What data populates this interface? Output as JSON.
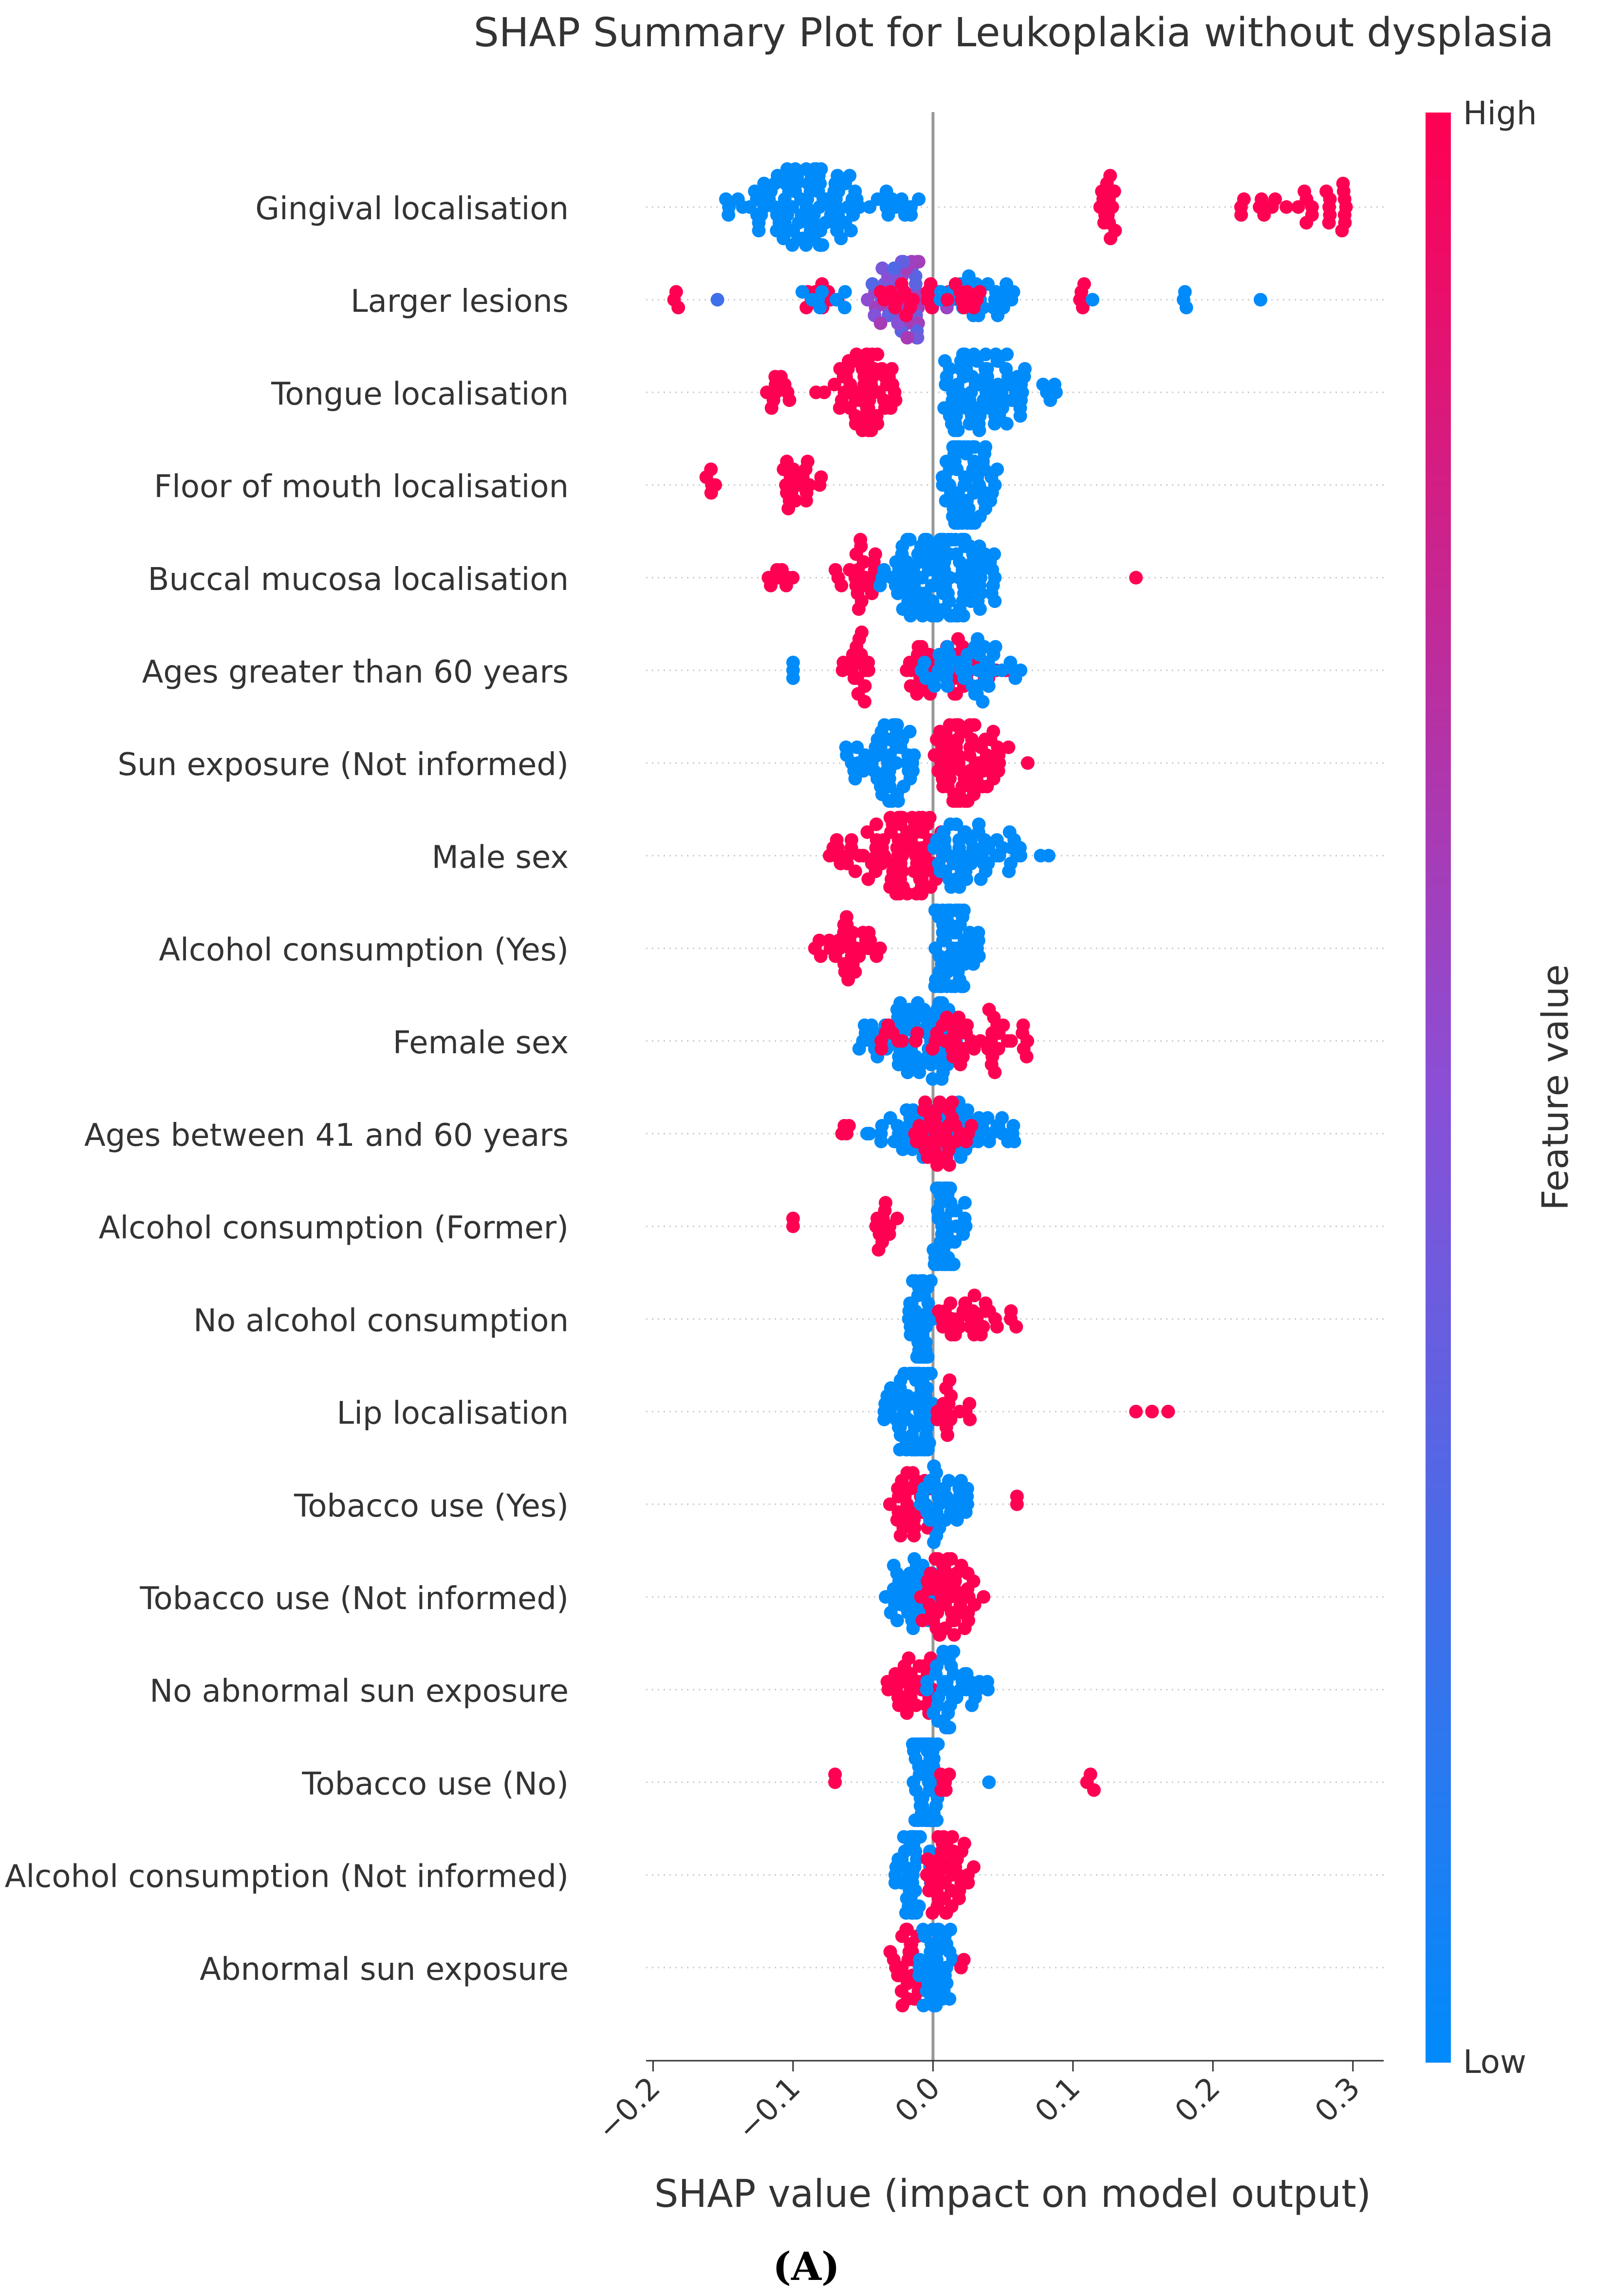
{
  "chart_data": {
    "type": "scatter",
    "subtype": "shap-beeswarm",
    "title": "SHAP Summary Plot for Leukoplakia without dysplasia",
    "xlabel": "SHAP value (impact on model output)",
    "ylabel": "",
    "xlim": [
      -0.205,
      0.322
    ],
    "x_ticks": [
      -0.2,
      -0.1,
      0.0,
      0.1,
      0.2,
      0.3
    ],
    "x_tick_labels": [
      "−0.2",
      "−0.1",
      "0.0",
      "0.1",
      "0.2",
      "0.3"
    ],
    "colorbar": {
      "label": "Feature value",
      "high_label": "High",
      "low_label": "Low",
      "low_color": "#008bfb",
      "mid_color": "#8a4fd6",
      "high_color": "#ff0052"
    },
    "panel_label": "(A)",
    "features": [
      {
        "name": "Gingival localisation",
        "clusters": [
          {
            "min": -0.153,
            "max": -0.052,
            "center": -0.09,
            "n": 95,
            "color": "low"
          },
          {
            "min": -0.05,
            "max": -0.01,
            "center": -0.03,
            "n": 14,
            "color": "low"
          },
          {
            "min": 0.119,
            "max": 0.135,
            "center": 0.127,
            "n": 14,
            "color": "high"
          },
          {
            "min": 0.218,
            "max": 0.3,
            "center": 0.275,
            "n": 28,
            "color": "high"
          }
        ]
      },
      {
        "name": "Larger lesions",
        "clusters": [
          {
            "min": -0.185,
            "max": -0.182,
            "center": -0.183,
            "n": 3,
            "color": "high"
          },
          {
            "min": -0.154,
            "max": -0.154,
            "center": -0.154,
            "n": 1,
            "color": 0.3
          },
          {
            "min": -0.1,
            "max": -0.065,
            "center": -0.08,
            "n": 10,
            "color": "high"
          },
          {
            "min": -0.1,
            "max": -0.05,
            "center": -0.075,
            "n": 8,
            "color": "low"
          },
          {
            "min": -0.05,
            "max": 0.02,
            "center": -0.015,
            "n": 55,
            "color": 0.45
          },
          {
            "min": -0.045,
            "max": 0.03,
            "center": -0.01,
            "n": 22,
            "color": "high"
          },
          {
            "min": 0.005,
            "max": 0.065,
            "center": 0.035,
            "n": 30,
            "color": "low"
          },
          {
            "min": 0.01,
            "max": 0.045,
            "center": 0.025,
            "n": 10,
            "color": "high"
          },
          {
            "min": 0.105,
            "max": 0.108,
            "center": 0.106,
            "n": 4,
            "color": "high"
          },
          {
            "min": 0.114,
            "max": 0.114,
            "center": 0.114,
            "n": 1,
            "color": "low"
          },
          {
            "min": 0.179,
            "max": 0.181,
            "center": 0.18,
            "n": 3,
            "color": "low"
          },
          {
            "min": 0.234,
            "max": 0.234,
            "center": 0.234,
            "n": 1,
            "color": "low"
          }
        ]
      },
      {
        "name": "Tongue localisation",
        "clusters": [
          {
            "min": -0.12,
            "max": -0.1,
            "center": -0.11,
            "n": 10,
            "color": "high"
          },
          {
            "min": -0.085,
            "max": -0.025,
            "center": -0.045,
            "n": 55,
            "color": "high"
          },
          {
            "min": 0.008,
            "max": 0.095,
            "center": 0.03,
            "n": 80,
            "color": "low"
          }
        ]
      },
      {
        "name": "Floor of mouth localisation",
        "clusters": [
          {
            "min": -0.165,
            "max": -0.155,
            "center": -0.16,
            "n": 5,
            "color": "high"
          },
          {
            "min": -0.11,
            "max": -0.065,
            "center": -0.095,
            "n": 20,
            "color": "high"
          },
          {
            "min": 0.005,
            "max": 0.048,
            "center": 0.02,
            "n": 60,
            "color": "low"
          }
        ]
      },
      {
        "name": "Buccal mucosa localisation",
        "clusters": [
          {
            "min": -0.125,
            "max": -0.1,
            "center": -0.11,
            "n": 8,
            "color": "high"
          },
          {
            "min": -0.07,
            "max": -0.04,
            "center": -0.045,
            "n": 22,
            "color": "high"
          },
          {
            "min": -0.04,
            "max": 0.045,
            "center": 0.005,
            "n": 110,
            "color": "low"
          },
          {
            "min": 0.145,
            "max": 0.145,
            "center": 0.145,
            "n": 1,
            "color": "high"
          }
        ]
      },
      {
        "name": "Ages greater than 60 years",
        "clusters": [
          {
            "min": -0.1,
            "max": -0.1,
            "center": -0.1,
            "n": 3,
            "color": "low"
          },
          {
            "min": -0.07,
            "max": -0.045,
            "center": -0.055,
            "n": 18,
            "color": "high"
          },
          {
            "min": -0.02,
            "max": 0.06,
            "center": 0.005,
            "n": 45,
            "color": "high"
          },
          {
            "min": -0.01,
            "max": 0.07,
            "center": 0.03,
            "n": 45,
            "color": "low"
          }
        ]
      },
      {
        "name": "Sun exposure (Not informed)",
        "clusters": [
          {
            "min": -0.065,
            "max": -0.01,
            "center": -0.03,
            "n": 55,
            "color": "low"
          },
          {
            "min": 0.0,
            "max": 0.07,
            "center": 0.015,
            "n": 70,
            "color": "high"
          }
        ]
      },
      {
        "name": "Male sex",
        "clusters": [
          {
            "min": -0.085,
            "max": -0.045,
            "center": -0.065,
            "n": 12,
            "color": "high"
          },
          {
            "min": -0.05,
            "max": 0.01,
            "center": -0.015,
            "n": 70,
            "color": "high"
          },
          {
            "min": 0.0,
            "max": 0.087,
            "center": 0.02,
            "n": 55,
            "color": "low"
          }
        ]
      },
      {
        "name": "Alcohol consumption (Yes)",
        "clusters": [
          {
            "min": -0.085,
            "max": -0.03,
            "center": -0.06,
            "n": 30,
            "color": "high"
          },
          {
            "min": 0.0,
            "max": 0.035,
            "center": 0.015,
            "n": 55,
            "color": "low"
          }
        ]
      },
      {
        "name": "Female sex",
        "clusters": [
          {
            "min": -0.055,
            "max": 0.02,
            "center": -0.01,
            "n": 75,
            "color": "low"
          },
          {
            "min": -0.04,
            "max": 0.07,
            "center": 0.03,
            "n": 50,
            "color": "high"
          }
        ]
      },
      {
        "name": "Ages between 41 and 60 years",
        "clusters": [
          {
            "min": -0.065,
            "max": -0.06,
            "center": -0.062,
            "n": 4,
            "color": "high"
          },
          {
            "min": -0.05,
            "max": 0.06,
            "center": 0.01,
            "n": 70,
            "color": "low"
          },
          {
            "min": -0.015,
            "max": 0.04,
            "center": 0.005,
            "n": 35,
            "color": "high"
          }
        ]
      },
      {
        "name": "Alcohol consumption (Former)",
        "clusters": [
          {
            "min": -0.1,
            "max": -0.1,
            "center": -0.1,
            "n": 2,
            "color": "high"
          },
          {
            "min": -0.045,
            "max": -0.025,
            "center": -0.035,
            "n": 12,
            "color": "high"
          },
          {
            "min": 0.0,
            "max": 0.025,
            "center": 0.008,
            "n": 45,
            "color": "low"
          }
        ]
      },
      {
        "name": "No alcohol consumption",
        "clusters": [
          {
            "min": -0.02,
            "max": 0.0,
            "center": -0.01,
            "n": 35,
            "color": "low"
          },
          {
            "min": 0.0,
            "max": 0.07,
            "center": 0.02,
            "n": 30,
            "color": "high"
          }
        ]
      },
      {
        "name": "Lip localisation",
        "clusters": [
          {
            "min": -0.035,
            "max": 0.0,
            "center": -0.008,
            "n": 70,
            "color": "low"
          },
          {
            "min": 0.0,
            "max": 0.035,
            "center": 0.015,
            "n": 15,
            "color": "high"
          },
          {
            "min": 0.145,
            "max": 0.168,
            "center": 0.155,
            "n": 3,
            "color": "high"
          }
        ]
      },
      {
        "name": "Tobacco use (Yes)",
        "clusters": [
          {
            "min": -0.035,
            "max": 0.0,
            "center": -0.015,
            "n": 30,
            "color": "high"
          },
          {
            "min": -0.01,
            "max": 0.035,
            "center": 0.005,
            "n": 35,
            "color": "low"
          },
          {
            "min": 0.06,
            "max": 0.06,
            "center": 0.06,
            "n": 2,
            "color": "high"
          }
        ]
      },
      {
        "name": "Tobacco use (Not informed)",
        "clusters": [
          {
            "min": -0.035,
            "max": 0.0,
            "center": -0.01,
            "n": 35,
            "color": "low"
          },
          {
            "min": -0.01,
            "max": 0.04,
            "center": 0.01,
            "n": 50,
            "color": "high"
          }
        ]
      },
      {
        "name": "No abnormal sun exposure",
        "clusters": [
          {
            "min": -0.035,
            "max": 0.0,
            "center": -0.015,
            "n": 30,
            "color": "high"
          },
          {
            "min": -0.005,
            "max": 0.04,
            "center": 0.005,
            "n": 40,
            "color": "low"
          }
        ]
      },
      {
        "name": "Tobacco use (No)",
        "clusters": [
          {
            "min": -0.07,
            "max": -0.07,
            "center": -0.07,
            "n": 2,
            "color": "high"
          },
          {
            "min": -0.015,
            "max": 0.005,
            "center": -0.004,
            "n": 60,
            "color": "low"
          },
          {
            "min": 0.005,
            "max": 0.02,
            "center": 0.012,
            "n": 6,
            "color": "high"
          },
          {
            "min": 0.04,
            "max": 0.04,
            "center": 0.04,
            "n": 1,
            "color": "low"
          },
          {
            "min": 0.11,
            "max": 0.115,
            "center": 0.112,
            "n": 3,
            "color": "high"
          }
        ]
      },
      {
        "name": "Alcohol consumption (Not informed)",
        "clusters": [
          {
            "min": -0.03,
            "max": 0.0,
            "center": -0.01,
            "n": 40,
            "color": "low"
          },
          {
            "min": -0.005,
            "max": 0.03,
            "center": 0.01,
            "n": 40,
            "color": "high"
          }
        ]
      },
      {
        "name": "Abnormal sun exposure",
        "clusters": [
          {
            "min": -0.035,
            "max": -0.003,
            "center": -0.015,
            "n": 25,
            "color": "high"
          },
          {
            "min": -0.01,
            "max": 0.015,
            "center": 0.002,
            "n": 40,
            "color": "low"
          },
          {
            "min": 0.02,
            "max": 0.022,
            "center": 0.021,
            "n": 2,
            "color": "high"
          }
        ]
      }
    ]
  }
}
